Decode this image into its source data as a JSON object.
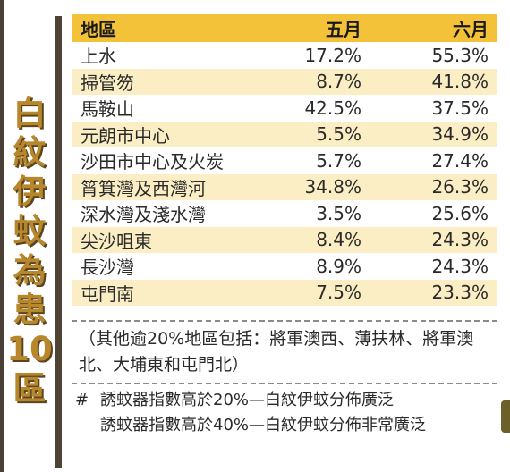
{
  "title_chars": [
    "白",
    "紋",
    "伊",
    "蚊",
    "為",
    "患",
    "10",
    "區"
  ],
  "table": {
    "headers": {
      "area": "地區",
      "may": "五月",
      "june": "六月"
    },
    "rows": [
      {
        "area": "上水",
        "may": "17.2%",
        "june": "55.3%"
      },
      {
        "area": "掃管笏",
        "may": "8.7%",
        "june": "41.8%"
      },
      {
        "area": "馬鞍山",
        "may": "42.5%",
        "june": "37.5%"
      },
      {
        "area": "元朗市中心",
        "may": "5.5%",
        "june": "34.9%"
      },
      {
        "area": "沙田市中心及火炭",
        "may": "5.7%",
        "june": "27.4%"
      },
      {
        "area": "筲箕灣及西灣河",
        "may": "34.8%",
        "june": "26.3%"
      },
      {
        "area": "深水灣及淺水灣",
        "may": "3.5%",
        "june": "25.6%"
      },
      {
        "area": "尖沙咀東",
        "may": "8.4%",
        "june": "24.3%"
      },
      {
        "area": "長沙灣",
        "may": "8.9%",
        "june": "24.3%"
      },
      {
        "area": "屯門南",
        "may": "7.5%",
        "june": "23.3%"
      }
    ]
  },
  "note": "（其他逾20%地區包括：將軍澳西、薄扶林、將軍澳北、大埔東和屯門北）",
  "legend": {
    "symbol": "#",
    "line1": "誘蚊器指數高於20%—白紋伊蚊分佈廣泛",
    "line2": "誘蚊器指數高於40%—白紋伊蚊分佈非常廣泛"
  },
  "colors": {
    "header_bg": "#f4c238",
    "alt_row_bg": "#fbeec4",
    "title_color": "#b8872c",
    "divider": "#4e4436"
  }
}
